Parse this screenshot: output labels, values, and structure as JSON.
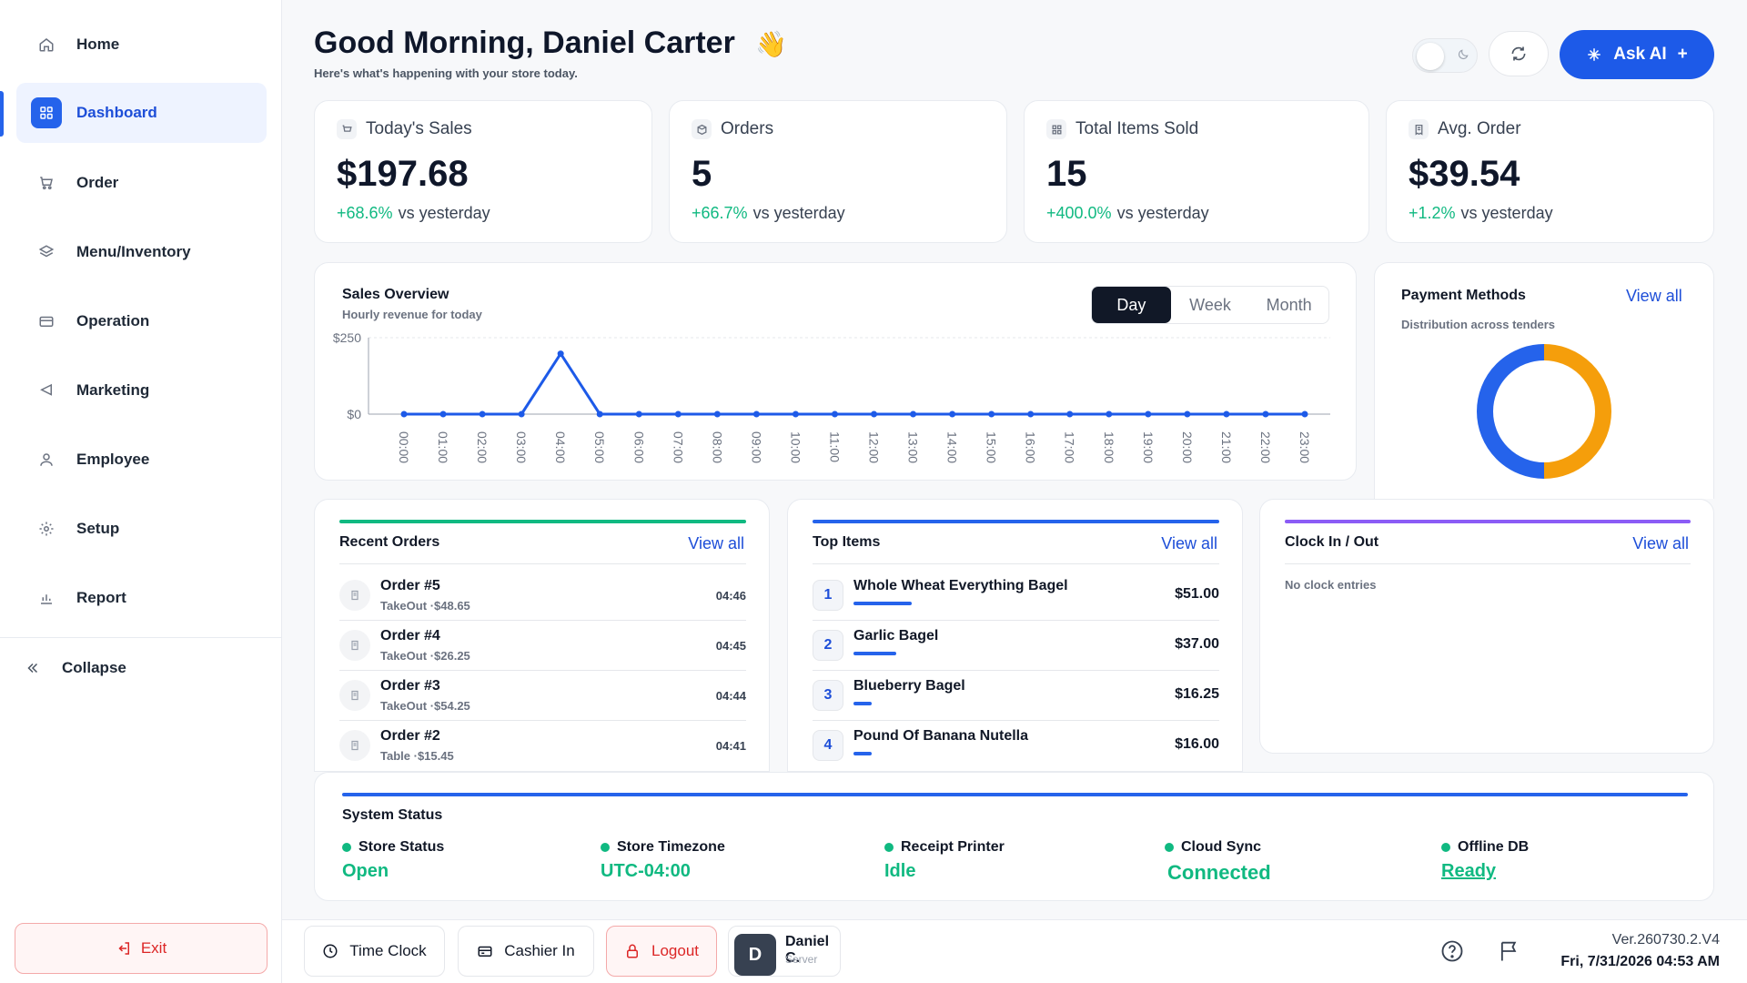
{
  "sidebar": {
    "items": [
      {
        "label": "Home",
        "icon": "home-icon"
      },
      {
        "label": "Dashboard",
        "icon": "grid-icon",
        "active": true
      },
      {
        "label": "Order",
        "icon": "cart-icon"
      },
      {
        "label": "Menu/Inventory",
        "icon": "layers-icon"
      },
      {
        "label": "Operation",
        "icon": "register-icon"
      },
      {
        "label": "Marketing",
        "icon": "megaphone-icon"
      },
      {
        "label": "Employee",
        "icon": "user-icon"
      },
      {
        "label": "Setup",
        "icon": "gear-icon"
      },
      {
        "label": "Report",
        "icon": "bar-chart-icon"
      }
    ],
    "collapse_label": "Collapse",
    "exit_label": "Exit"
  },
  "header": {
    "greeting": "Good Morning, Daniel Carter",
    "wave": "👋",
    "subtitle": "Here's what's happening with your store today.",
    "ask_ai_label": "Ask AI",
    "ask_ai_plus": "+"
  },
  "stats": [
    {
      "title": "Today's Sales",
      "value": "$197.68",
      "change": "+68.6%",
      "suffix": "vs yesterday",
      "icon": "cart-icon"
    },
    {
      "title": "Orders",
      "value": "5",
      "change": "+66.7%",
      "suffix": "vs yesterday",
      "icon": "box-icon"
    },
    {
      "title": "Total Items Sold",
      "value": "15",
      "change": "+400.0%",
      "suffix": "vs yesterday",
      "icon": "grid-icon"
    },
    {
      "title": "Avg. Order",
      "value": "$39.54",
      "change": "+1.2%",
      "suffix": "vs yesterday",
      "icon": "receipt-icon"
    }
  ],
  "sales_overview": {
    "title": "Sales Overview",
    "subtitle": "Hourly revenue for today",
    "tabs": [
      "Day",
      "Week",
      "Month"
    ],
    "active_tab": "Day"
  },
  "chart_data": {
    "type": "line",
    "title": "Sales Overview",
    "subtitle": "Hourly revenue for today",
    "categories": [
      "00:00",
      "01:00",
      "02:00",
      "03:00",
      "04:00",
      "05:00",
      "06:00",
      "07:00",
      "08:00",
      "09:00",
      "10:00",
      "11:00",
      "12:00",
      "13:00",
      "14:00",
      "15:00",
      "16:00",
      "17:00",
      "18:00",
      "19:00",
      "20:00",
      "21:00",
      "22:00",
      "23:00"
    ],
    "values": [
      0,
      0,
      0,
      0,
      197.68,
      0,
      0,
      0,
      0,
      0,
      0,
      0,
      0,
      0,
      0,
      0,
      0,
      0,
      0,
      0,
      0,
      0,
      0,
      0
    ],
    "y_ticks": [
      "$250",
      "$0"
    ],
    "ylim": [
      0,
      250
    ],
    "grid": true,
    "color": "#1d5ae8"
  },
  "payment_methods": {
    "title": "Payment Methods",
    "subtitle": "Distribution across tenders",
    "view_all": "View all",
    "chart_data": {
      "type": "pie",
      "values": [
        50,
        50
      ],
      "colors": [
        "#f59e0b",
        "#2563eb"
      ]
    }
  },
  "recent_orders": {
    "title": "Recent Orders",
    "view_all": "View all",
    "accent": "#10b981",
    "rows": [
      {
        "name": "Order #5",
        "type": "TakeOut",
        "amount": "·$48.65",
        "time": "04:46"
      },
      {
        "name": "Order #4",
        "type": "TakeOut",
        "amount": "·$26.25",
        "time": "04:45"
      },
      {
        "name": "Order #3",
        "type": "TakeOut",
        "amount": "·$54.25",
        "time": "04:44"
      },
      {
        "name": "Order #2",
        "type": "Table",
        "amount": "·$15.45",
        "time": "04:41"
      }
    ]
  },
  "top_items": {
    "title": "Top Items",
    "view_all": "View all",
    "accent": "#2563eb",
    "rows": [
      {
        "rank": "1",
        "name": "Whole Wheat Everything Bagel",
        "price": "$51.00",
        "share": 1.0
      },
      {
        "rank": "2",
        "name": "Garlic Bagel",
        "price": "$37.00",
        "share": 0.73
      },
      {
        "rank": "3",
        "name": "Blueberry Bagel",
        "price": "$16.25",
        "share": 0.32
      },
      {
        "rank": "4",
        "name": "Pound Of Banana Nutella",
        "price": "$16.00",
        "share": 0.31
      }
    ]
  },
  "clock": {
    "title": "Clock In / Out",
    "view_all": "View all",
    "accent": "#8b5cf6",
    "empty": "No clock entries"
  },
  "system_status": {
    "title": "System Status",
    "items": [
      {
        "label": "Store Status",
        "value": "Open"
      },
      {
        "label": "Store Timezone",
        "value": "UTC-04:00"
      },
      {
        "label": "Receipt Printer",
        "value": "Idle"
      },
      {
        "label": "Cloud Sync",
        "value": "Connected"
      },
      {
        "label": "Offline DB",
        "value": "Ready"
      }
    ]
  },
  "footer": {
    "time_clock": "Time Clock",
    "cashier_in": "Cashier In",
    "logout": "Logout",
    "user_initial": "D",
    "user_name": "Daniel C.",
    "user_role": "Server",
    "version": "Ver.260730.2.V4",
    "datetime": "Fri, 7/31/2026 04:53 AM"
  }
}
